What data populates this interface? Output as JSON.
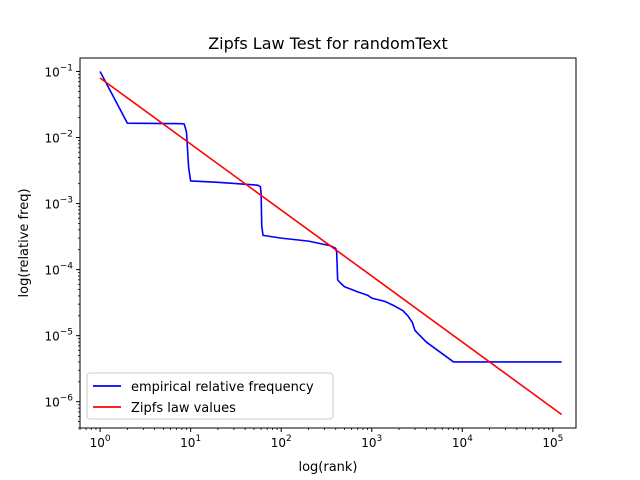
{
  "chart_data": {
    "type": "line",
    "title": "Zipfs Law Test for randomText",
    "xlabel": "log(rank)",
    "ylabel": "log(relative freq)",
    "xscale": "log",
    "yscale": "log",
    "xlim": [
      0.6,
      180000
    ],
    "ylim": [
      4e-07,
      0.16
    ],
    "grid": false,
    "legend_position": "lower-left",
    "x_tick_labels": [
      {
        "value": 1,
        "label": "10^0"
      },
      {
        "value": 10,
        "label": "10^1"
      },
      {
        "value": 100,
        "label": "10^2"
      },
      {
        "value": 1000,
        "label": "10^3"
      },
      {
        "value": 10000,
        "label": "10^4"
      },
      {
        "value": 100000,
        "label": "10^5"
      }
    ],
    "y_tick_labels": [
      {
        "value": 1e-06,
        "label": "10^-6"
      },
      {
        "value": 1e-05,
        "label": "10^-5"
      },
      {
        "value": 0.0001,
        "label": "10^-4"
      },
      {
        "value": 0.001,
        "label": "10^-3"
      },
      {
        "value": 0.01,
        "label": "10^-2"
      },
      {
        "value": 0.1,
        "label": "10^-1"
      }
    ],
    "series": [
      {
        "name": "empirical relative frequency",
        "color": "#0000ff",
        "points": [
          [
            1,
            0.1
          ],
          [
            2,
            0.0165
          ],
          [
            8,
            0.0162
          ],
          [
            8.5,
            0.016
          ],
          [
            9,
            0.012
          ],
          [
            9.5,
            0.0035
          ],
          [
            10,
            0.0022
          ],
          [
            20,
            0.0021
          ],
          [
            55,
            0.0019
          ],
          [
            59,
            0.0018
          ],
          [
            60,
            0.0014
          ],
          [
            61,
            0.00045
          ],
          [
            63,
            0.00033
          ],
          [
            100,
            0.0003
          ],
          [
            200,
            0.00027
          ],
          [
            350,
            0.00023
          ],
          [
            400,
            0.00021
          ],
          [
            410,
            0.00018
          ],
          [
            420,
            7e-05
          ],
          [
            450,
            6.3e-05
          ],
          [
            500,
            5.5e-05
          ],
          [
            600,
            5e-05
          ],
          [
            700,
            4.6e-05
          ],
          [
            900,
            4.1e-05
          ],
          [
            1000,
            3.7e-05
          ],
          [
            1400,
            3.3e-05
          ],
          [
            1800,
            2.8e-05
          ],
          [
            2200,
            2.4e-05
          ],
          [
            2500,
            2e-05
          ],
          [
            2800,
            1.6e-05
          ],
          [
            3000,
            1.2e-05
          ],
          [
            4000,
            8e-06
          ],
          [
            8000,
            4e-06
          ],
          [
            125000,
            4e-06
          ]
        ]
      },
      {
        "name": "Zipfs law values",
        "color": "#ff0000",
        "points": [
          [
            1,
            0.0797
          ],
          [
            125000,
            6.4e-07
          ]
        ]
      }
    ]
  }
}
